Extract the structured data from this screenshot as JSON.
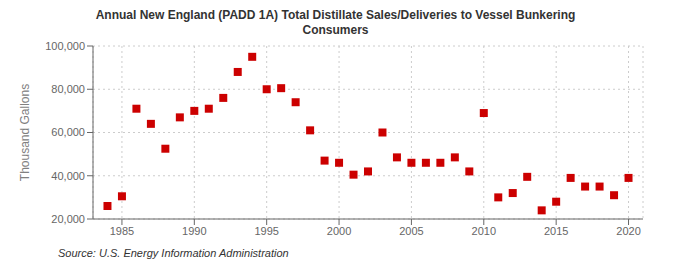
{
  "chart_data": {
    "type": "scatter",
    "title": "Annual New England (PADD 1A) Total Distillate Sales/Deliveries to Vessel Bunkering\nConsumers",
    "ylabel": "Thousand Gallons",
    "source": "Source: U.S. Energy Information Administration",
    "x": [
      1984,
      1985,
      1986,
      1987,
      1988,
      1989,
      1990,
      1991,
      1992,
      1993,
      1994,
      1995,
      1996,
      1997,
      1998,
      1999,
      2000,
      2001,
      2002,
      2003,
      2004,
      2005,
      2006,
      2007,
      2008,
      2009,
      2010,
      2011,
      2012,
      2013,
      2014,
      2015,
      2016,
      2017,
      2018,
      2019,
      2020
    ],
    "values": [
      26000,
      30500,
      71000,
      64000,
      52500,
      67000,
      70000,
      71000,
      76000,
      88000,
      95000,
      80000,
      80500,
      74000,
      61000,
      47000,
      46000,
      40500,
      42000,
      60000,
      48500,
      46000,
      46000,
      46000,
      48500,
      42000,
      69000,
      30000,
      32000,
      39500,
      24000,
      28000,
      39000,
      35000,
      35000,
      31000,
      39000
    ],
    "color": "#cc0000",
    "marker": "square",
    "xlim": [
      1983,
      2021
    ],
    "xticks": [
      1985,
      1990,
      1995,
      2000,
      2005,
      2010,
      2015,
      2020
    ],
    "ylim": [
      20000,
      100000
    ],
    "yticks": [
      {
        "value": 20000,
        "label": "20,000"
      },
      {
        "value": 40000,
        "label": "40,000"
      },
      {
        "value": 60000,
        "label": "60,000"
      },
      {
        "value": 80000,
        "label": "80,000"
      },
      {
        "value": 100000,
        "label": "100,000"
      }
    ],
    "grid": true
  }
}
